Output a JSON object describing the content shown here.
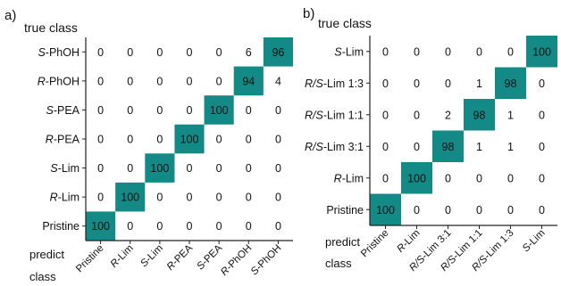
{
  "colors": {
    "accent": "#138a86",
    "cell_text_on_accent": "#ffffff",
    "cell_text": "#111111",
    "border": "#222222"
  },
  "chart_data": [
    {
      "type": "heatmap",
      "panel_label": "a)",
      "y_title": "true class",
      "x_title": [
        "predict",
        "class"
      ],
      "rows": [
        "S-PhOH",
        "R-PhOH",
        "S-PEA",
        "R-PEA",
        "S-Lim",
        "R-Lim",
        "Pristine"
      ],
      "columns": [
        "Pristine",
        "R-Lim",
        "S-Lim",
        "R-PEA",
        "S-PEA",
        "R-PhOH",
        "S-PhOH"
      ],
      "values": [
        [
          0,
          0,
          0,
          0,
          0,
          6,
          96
        ],
        [
          0,
          0,
          0,
          0,
          0,
          94,
          4
        ],
        [
          0,
          0,
          0,
          0,
          100,
          0,
          0
        ],
        [
          0,
          0,
          0,
          100,
          0,
          0,
          0
        ],
        [
          0,
          0,
          100,
          0,
          0,
          0,
          0
        ],
        [
          0,
          100,
          0,
          0,
          0,
          0,
          0
        ],
        [
          100,
          0,
          0,
          0,
          0,
          0,
          0
        ]
      ]
    },
    {
      "type": "heatmap",
      "panel_label": "b)",
      "y_title": "true class",
      "x_title": [
        "predict",
        "class"
      ],
      "rows": [
        "S-Lim",
        "R/S-Lim 1:3",
        "R/S-Lim 1:1",
        "R/S-Lim 3:1",
        "R-Lim",
        "Pristine"
      ],
      "columns": [
        "Pristine",
        "R-Lim",
        "R/S-Lim 3:1",
        "R/S-Lim 1:1",
        "R/S-Lim 1:3",
        "S-Lim"
      ],
      "values": [
        [
          0,
          0,
          0,
          0,
          0,
          100
        ],
        [
          0,
          0,
          0,
          1,
          98,
          0
        ],
        [
          0,
          0,
          2,
          98,
          1,
          0
        ],
        [
          0,
          0,
          98,
          1,
          1,
          0
        ],
        [
          0,
          100,
          0,
          0,
          0,
          0
        ],
        [
          100,
          0,
          0,
          0,
          0,
          0
        ]
      ]
    }
  ]
}
